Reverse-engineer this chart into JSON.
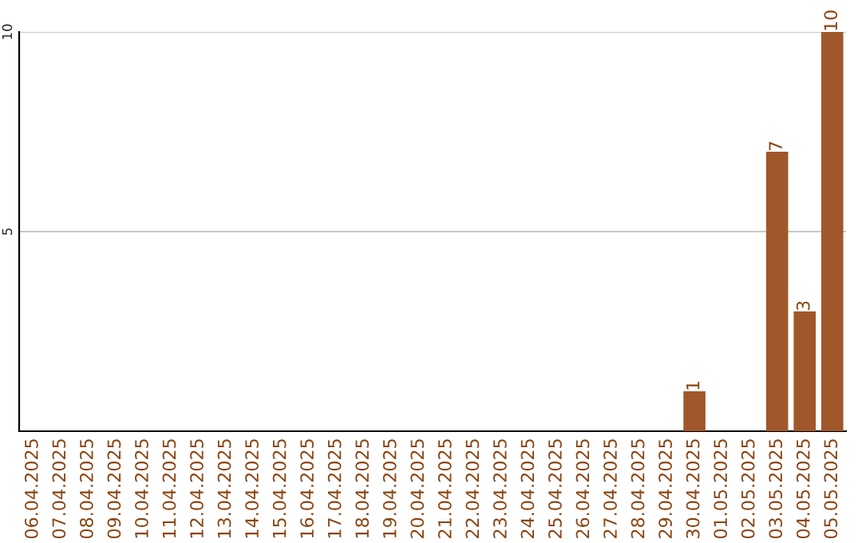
{
  "chart_data": {
    "type": "bar",
    "categories": [
      "06.04.2025",
      "07.04.2025",
      "08.04.2025",
      "09.04.2025",
      "10.04.2025",
      "11.04.2025",
      "12.04.2025",
      "13.04.2025",
      "14.04.2025",
      "15.04.2025",
      "16.04.2025",
      "17.04.2025",
      "18.04.2025",
      "19.04.2025",
      "20.04.2025",
      "21.04.2025",
      "22.04.2025",
      "23.04.2025",
      "24.04.2025",
      "25.04.2025",
      "26.04.2025",
      "27.04.2025",
      "28.04.2025",
      "29.04.2025",
      "30.04.2025",
      "01.05.2025",
      "02.05.2025",
      "03.05.2025",
      "04.05.2025",
      "05.05.2025"
    ],
    "values": [
      0,
      0,
      0,
      0,
      0,
      0,
      0,
      0,
      0,
      0,
      0,
      0,
      0,
      0,
      0,
      0,
      0,
      0,
      0,
      0,
      0,
      0,
      0,
      0,
      1,
      0,
      0,
      7,
      3,
      10
    ],
    "value_labels": [
      null,
      null,
      null,
      null,
      null,
      null,
      null,
      null,
      null,
      null,
      null,
      null,
      null,
      null,
      null,
      null,
      null,
      null,
      null,
      null,
      null,
      null,
      null,
      null,
      "1",
      null,
      null,
      "7",
      "3",
      "10"
    ],
    "color": "#a0582a",
    "ylim": [
      0,
      10
    ],
    "yticks": [
      5,
      10
    ],
    "grid": "y"
  }
}
